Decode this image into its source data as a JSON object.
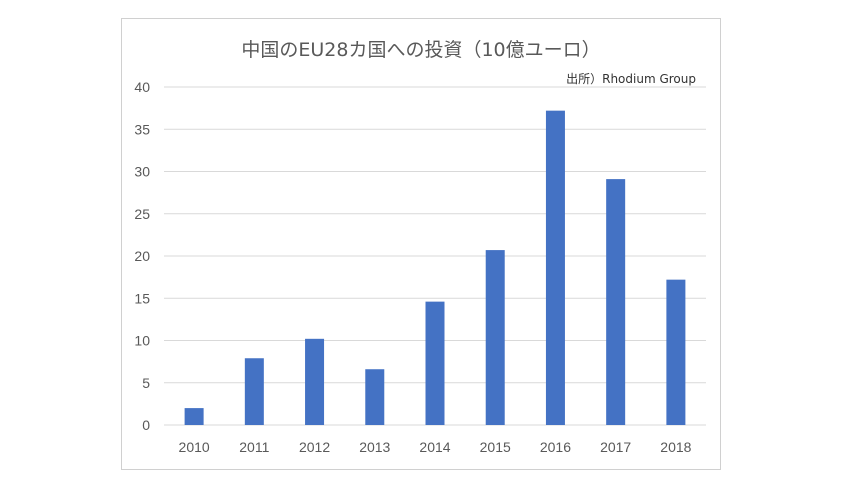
{
  "chart_data": {
    "type": "bar",
    "title": "中国のEU28カ国への投資（10億ユーロ）",
    "source": "出所）Rhodium Group",
    "categories": [
      "2010",
      "2011",
      "2012",
      "2013",
      "2014",
      "2015",
      "2016",
      "2017",
      "2018"
    ],
    "values": [
      2.0,
      7.9,
      10.2,
      6.6,
      14.6,
      20.7,
      37.2,
      29.1,
      17.2
    ],
    "yticks": [
      "0",
      "5",
      "10",
      "15",
      "20",
      "25",
      "30",
      "35",
      "40"
    ],
    "ylim": [
      0,
      40
    ],
    "xlabel": "",
    "ylabel": "",
    "grid": true,
    "bar_color": "#4472c4"
  }
}
